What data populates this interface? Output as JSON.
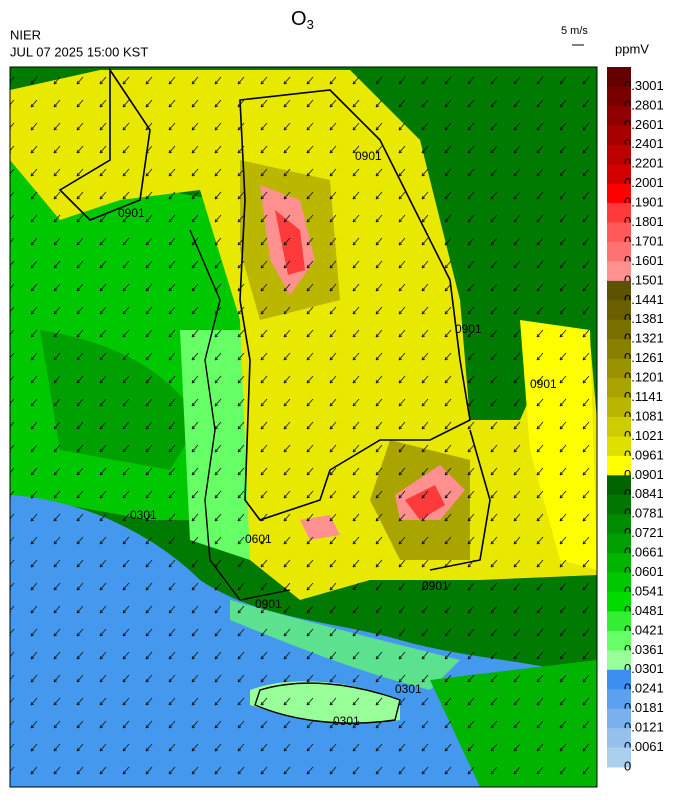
{
  "header": {
    "title": "O",
    "title_subscript": "3",
    "agency": "NIER",
    "datetime": "JUL 07 2025 15:00 KST",
    "vector_scale": "5 m/s"
  },
  "colorbar": {
    "unit": "ppmV",
    "levels": [
      0.3001,
      0.2801,
      0.2601,
      0.2401,
      0.2201,
      0.2001,
      0.1901,
      0.1801,
      0.1701,
      0.1601,
      0.1501,
      0.1441,
      0.1381,
      0.1321,
      0.1261,
      0.1201,
      0.1141,
      0.1081,
      0.1021,
      0.0961,
      0.0901,
      0.0841,
      0.0781,
      0.0721,
      0.0661,
      0.0601,
      0.0541,
      0.0481,
      0.0421,
      0.0361,
      0.0301,
      0.0241,
      0.0181,
      0.0121,
      0.0061,
      0
    ],
    "colors": [
      "#640000",
      "#7a0000",
      "#900000",
      "#a60000",
      "#bc0000",
      "#d20000",
      "#ff0000",
      "#ff3a3a",
      "#ff5a5a",
      "#ff7272",
      "#ff9090",
      "#5c5200",
      "#6a6000",
      "#7a7000",
      "#8a8000",
      "#9a9200",
      "#aaa400",
      "#bbb600",
      "#cccc00",
      "#e0e000",
      "#ffff00",
      "#006400",
      "#007800",
      "#008c00",
      "#00a000",
      "#00b400",
      "#00c800",
      "#00dc00",
      "#33ee33",
      "#66ff66",
      "#99ff99",
      "#3c8ef0",
      "#5ca0f0",
      "#7ab0ee",
      "#96c0ee",
      "#aad0ee"
    ]
  },
  "contour_labels": [
    "0901",
    "0901",
    "0901",
    "0901",
    "0901",
    "0901",
    "0301",
    "0301",
    "0301",
    "0601"
  ]
}
